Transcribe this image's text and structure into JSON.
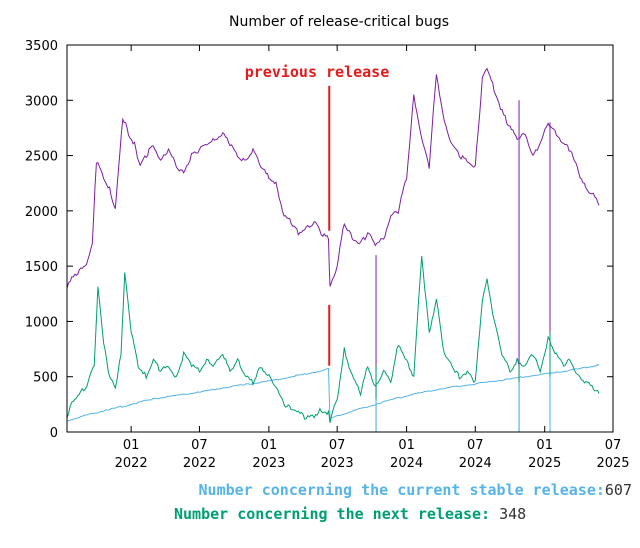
{
  "chart_data": {
    "type": "line",
    "title": "Number of release-critical bugs",
    "xlabel": "",
    "ylabel": "",
    "x_range": [
      "2021-07-15",
      "2025-07-01"
    ],
    "ylim": [
      0,
      3500
    ],
    "y_ticks": [
      0,
      500,
      1000,
      1500,
      2000,
      2500,
      3000,
      3500
    ],
    "x_ticks": [
      {
        "date": "2022-01-01",
        "month": "01",
        "year": "2022"
      },
      {
        "date": "2022-07-01",
        "month": "07",
        "year": "2022"
      },
      {
        "date": "2023-01-01",
        "month": "01",
        "year": "2023"
      },
      {
        "date": "2023-07-01",
        "month": "07",
        "year": "2023"
      },
      {
        "date": "2024-01-01",
        "month": "01",
        "year": "2024"
      },
      {
        "date": "2024-07-01",
        "month": "07",
        "year": "2024"
      },
      {
        "date": "2025-01-01",
        "month": "01",
        "year": "2025"
      },
      {
        "date": "2025-07-01",
        "month": "07",
        "year": "2025"
      }
    ],
    "grid": false,
    "annotation": {
      "text": "previous release",
      "date": "2023-06-10",
      "color": "#e41a1c"
    },
    "series": [
      {
        "color": "#7b1fa2",
        "points": [
          [
            "2021-07-15",
            1300
          ],
          [
            "2021-08-01",
            1420
          ],
          [
            "2021-09-01",
            1490
          ],
          [
            "2021-09-20",
            1700
          ],
          [
            "2021-10-01",
            2450
          ],
          [
            "2021-10-20",
            2300
          ],
          [
            "2021-11-05",
            2200
          ],
          [
            "2021-11-20",
            2000
          ],
          [
            "2021-12-10",
            2850
          ],
          [
            "2021-12-25",
            2700
          ],
          [
            "2022-01-10",
            2600
          ],
          [
            "2022-01-25",
            2400
          ],
          [
            "2022-02-10",
            2500
          ],
          [
            "2022-03-01",
            2600
          ],
          [
            "2022-03-20",
            2450
          ],
          [
            "2022-04-10",
            2550
          ],
          [
            "2022-05-01",
            2400
          ],
          [
            "2022-05-20",
            2350
          ],
          [
            "2022-06-10",
            2500
          ],
          [
            "2022-07-01",
            2550
          ],
          [
            "2022-07-20",
            2600
          ],
          [
            "2022-08-10",
            2650
          ],
          [
            "2022-09-01",
            2700
          ],
          [
            "2022-09-20",
            2600
          ],
          [
            "2022-10-10",
            2500
          ],
          [
            "2022-11-01",
            2450
          ],
          [
            "2022-11-20",
            2550
          ],
          [
            "2022-12-10",
            2400
          ],
          [
            "2023-01-01",
            2300
          ],
          [
            "2023-01-20",
            2250
          ],
          [
            "2023-02-10",
            1950
          ],
          [
            "2023-03-01",
            1900
          ],
          [
            "2023-03-20",
            1800
          ],
          [
            "2023-04-10",
            1850
          ],
          [
            "2023-05-01",
            1900
          ],
          [
            "2023-05-20",
            1800
          ],
          [
            "2023-06-08",
            1750
          ],
          [
            "2023-06-12",
            1300
          ],
          [
            "2023-07-01",
            1500
          ],
          [
            "2023-07-20",
            1900
          ],
          [
            "2023-08-10",
            1750
          ],
          [
            "2023-09-01",
            1700
          ],
          [
            "2023-09-20",
            1800
          ],
          [
            "2023-10-10",
            1700
          ],
          [
            "2023-11-01",
            1750
          ],
          [
            "2023-11-20",
            1950
          ],
          [
            "2023-12-10",
            2000
          ],
          [
            "2024-01-01",
            2300
          ],
          [
            "2024-01-20",
            3050
          ],
          [
            "2024-02-10",
            2650
          ],
          [
            "2024-03-01",
            2400
          ],
          [
            "2024-03-20",
            3250
          ],
          [
            "2024-04-10",
            2800
          ],
          [
            "2024-05-01",
            2600
          ],
          [
            "2024-05-20",
            2500
          ],
          [
            "2024-06-10",
            2450
          ],
          [
            "2024-07-01",
            2400
          ],
          [
            "2024-07-20",
            3200
          ],
          [
            "2024-08-01",
            3300
          ],
          [
            "2024-08-20",
            3100
          ],
          [
            "2024-09-10",
            2900
          ],
          [
            "2024-10-01",
            2750
          ],
          [
            "2024-10-20",
            2650
          ],
          [
            "2024-11-10",
            2700
          ],
          [
            "2024-12-01",
            2500
          ],
          [
            "2024-12-20",
            2600
          ],
          [
            "2025-01-10",
            2800
          ],
          [
            "2025-02-01",
            2700
          ],
          [
            "2025-02-20",
            2600
          ],
          [
            "2025-03-10",
            2550
          ],
          [
            "2025-04-01",
            2350
          ],
          [
            "2025-04-20",
            2200
          ],
          [
            "2025-05-10",
            2150
          ],
          [
            "2025-05-25",
            2050
          ]
        ]
      },
      {
        "name": "Number concerning the current stable release",
        "name_short": "Number concerning the current stable release:",
        "current": "607",
        "color": "#56b4e9",
        "points": [
          [
            "2021-07-15",
            100
          ],
          [
            "2021-09-01",
            150
          ],
          [
            "2021-11-01",
            200
          ],
          [
            "2022-01-01",
            250
          ],
          [
            "2022-03-01",
            300
          ],
          [
            "2022-05-01",
            330
          ],
          [
            "2022-07-01",
            360
          ],
          [
            "2022-09-01",
            400
          ],
          [
            "2022-11-01",
            430
          ],
          [
            "2023-01-01",
            460
          ],
          [
            "2023-03-01",
            500
          ],
          [
            "2023-05-01",
            540
          ],
          [
            "2023-06-08",
            570
          ],
          [
            "2023-06-12",
            120
          ],
          [
            "2023-08-01",
            180
          ],
          [
            "2023-10-01",
            240
          ],
          [
            "2023-12-01",
            300
          ],
          [
            "2024-02-01",
            350
          ],
          [
            "2024-04-01",
            390
          ],
          [
            "2024-06-01",
            420
          ],
          [
            "2024-08-01",
            450
          ],
          [
            "2024-10-01",
            480
          ],
          [
            "2024-12-01",
            510
          ],
          [
            "2025-02-01",
            540
          ],
          [
            "2025-04-01",
            570
          ],
          [
            "2025-05-25",
            607
          ]
        ]
      },
      {
        "name": "Number concerning the next release",
        "name_short": "Number concerning the next release:",
        "current": "348",
        "color": "#009e73",
        "points": [
          [
            "2021-07-15",
            150
          ],
          [
            "2021-08-01",
            300
          ],
          [
            "2021-08-20",
            350
          ],
          [
            "2021-09-10",
            450
          ],
          [
            "2021-09-25",
            600
          ],
          [
            "2021-10-05",
            1330
          ],
          [
            "2021-10-20",
            800
          ],
          [
            "2021-11-05",
            500
          ],
          [
            "2021-11-20",
            400
          ],
          [
            "2021-12-05",
            700
          ],
          [
            "2021-12-15",
            1440
          ],
          [
            "2022-01-01",
            900
          ],
          [
            "2022-01-20",
            600
          ],
          [
            "2022-02-10",
            500
          ],
          [
            "2022-03-01",
            650
          ],
          [
            "2022-03-20",
            550
          ],
          [
            "2022-04-10",
            600
          ],
          [
            "2022-05-01",
            500
          ],
          [
            "2022-05-20",
            700
          ],
          [
            "2022-06-10",
            600
          ],
          [
            "2022-07-01",
            550
          ],
          [
            "2022-07-20",
            650
          ],
          [
            "2022-08-10",
            600
          ],
          [
            "2022-09-01",
            700
          ],
          [
            "2022-09-20",
            550
          ],
          [
            "2022-10-10",
            650
          ],
          [
            "2022-11-01",
            500
          ],
          [
            "2022-11-20",
            450
          ],
          [
            "2022-12-10",
            600
          ],
          [
            "2023-01-01",
            500
          ],
          [
            "2023-01-20",
            400
          ],
          [
            "2023-02-10",
            250
          ],
          [
            "2023-03-01",
            220
          ],
          [
            "2023-03-20",
            180
          ],
          [
            "2023-04-10",
            120
          ],
          [
            "2023-05-01",
            150
          ],
          [
            "2023-05-20",
            200
          ],
          [
            "2023-06-08",
            170
          ],
          [
            "2023-06-12",
            100
          ],
          [
            "2023-07-01",
            300
          ],
          [
            "2023-07-20",
            750
          ],
          [
            "2023-08-10",
            500
          ],
          [
            "2023-09-01",
            350
          ],
          [
            "2023-09-20",
            600
          ],
          [
            "2023-10-10",
            400
          ],
          [
            "2023-11-01",
            550
          ],
          [
            "2023-11-20",
            450
          ],
          [
            "2023-12-10",
            800
          ],
          [
            "2024-01-01",
            650
          ],
          [
            "2024-01-20",
            500
          ],
          [
            "2024-02-10",
            1600
          ],
          [
            "2024-03-01",
            900
          ],
          [
            "2024-03-20",
            1200
          ],
          [
            "2024-04-10",
            700
          ],
          [
            "2024-05-01",
            600
          ],
          [
            "2024-05-20",
            500
          ],
          [
            "2024-06-10",
            550
          ],
          [
            "2024-07-01",
            450
          ],
          [
            "2024-07-20",
            1200
          ],
          [
            "2024-08-01",
            1400
          ],
          [
            "2024-08-20",
            1000
          ],
          [
            "2024-09-10",
            700
          ],
          [
            "2024-10-01",
            550
          ],
          [
            "2024-10-20",
            650
          ],
          [
            "2024-11-10",
            600
          ],
          [
            "2024-12-01",
            700
          ],
          [
            "2024-12-20",
            550
          ],
          [
            "2025-01-10",
            850
          ],
          [
            "2025-02-01",
            700
          ],
          [
            "2025-02-20",
            600
          ],
          [
            "2025-03-10",
            650
          ],
          [
            "2025-04-01",
            500
          ],
          [
            "2025-04-20",
            450
          ],
          [
            "2025-05-10",
            400
          ],
          [
            "2025-05-25",
            348
          ]
        ]
      }
    ]
  }
}
